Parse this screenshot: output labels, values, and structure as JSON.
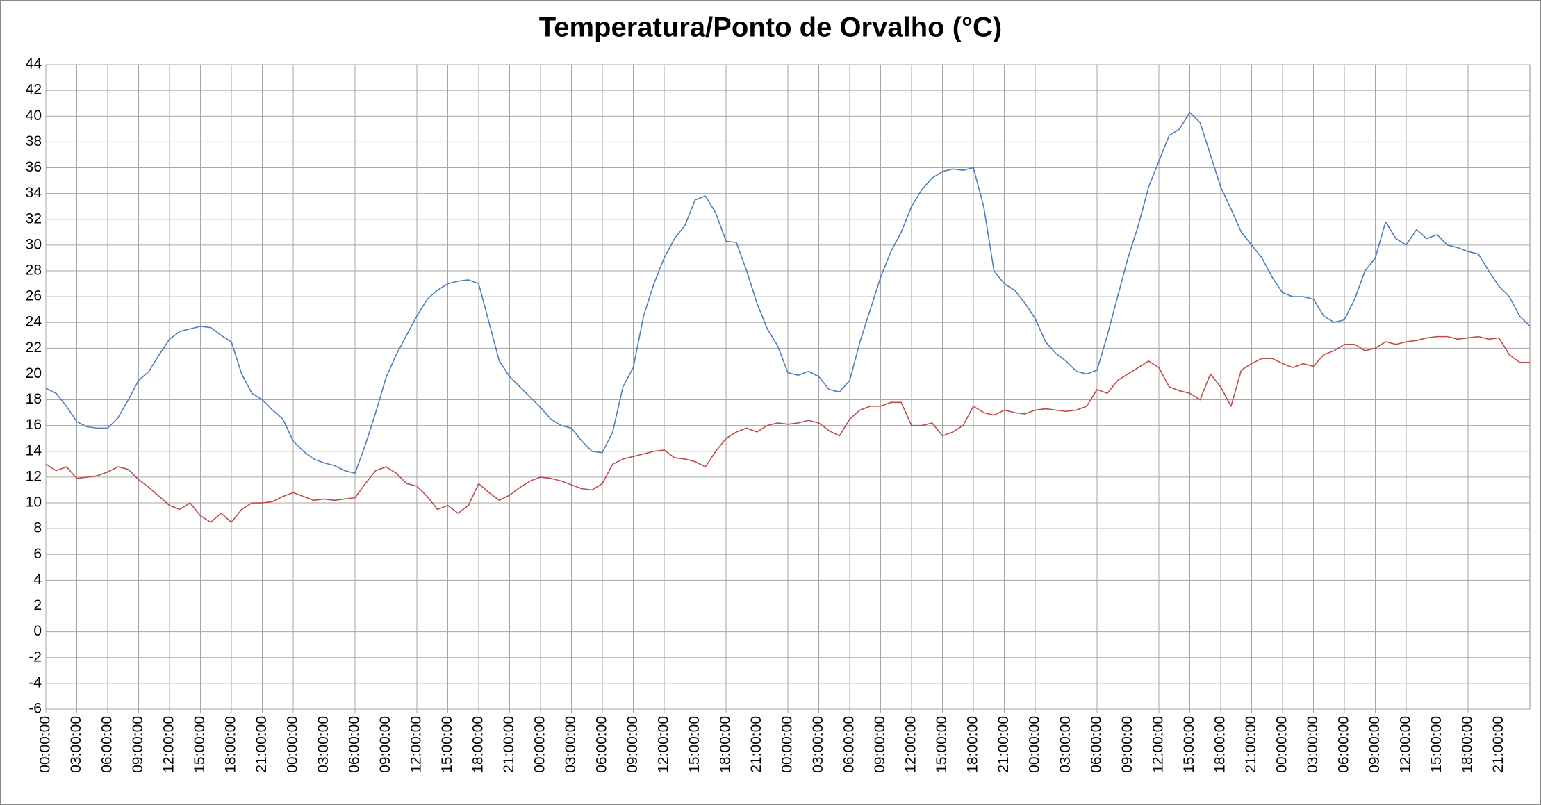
{
  "chart_data": {
    "type": "line",
    "title": "Temperatura/Ponto de Orvalho (°C)",
    "x": [
      0,
      1,
      2,
      3,
      4,
      5,
      6,
      7,
      8,
      9,
      10,
      11,
      12,
      13,
      14,
      15,
      16,
      17,
      18,
      19,
      20,
      21,
      22,
      23,
      24,
      25,
      26,
      27,
      28,
      29,
      30,
      31,
      32,
      33,
      34,
      35,
      36,
      37,
      38,
      39,
      40,
      41,
      42,
      43,
      44,
      45,
      46,
      47,
      48,
      49,
      50,
      51,
      52,
      53,
      54,
      55,
      56,
      57,
      58,
      59,
      60,
      61,
      62,
      63,
      64,
      65,
      66,
      67,
      68,
      69,
      70,
      71,
      72,
      73,
      74,
      75,
      76,
      77,
      78,
      79,
      80,
      81,
      82,
      83,
      84,
      85,
      86,
      87,
      88,
      89,
      90,
      91,
      92,
      93,
      94,
      95,
      96,
      97,
      98,
      99,
      100,
      101,
      102,
      103,
      104,
      105,
      106,
      107,
      108,
      109,
      110,
      111,
      112,
      113,
      114,
      115,
      116,
      117,
      118,
      119,
      120,
      121,
      122,
      123,
      124,
      125,
      126,
      127,
      128,
      129,
      130,
      131,
      132,
      133,
      134,
      135,
      136,
      137,
      138,
      139,
      140,
      141,
      142,
      143,
      144
    ],
    "series": [
      {
        "color": "#4a7ebb",
        "values": [
          18.9,
          18.5,
          17.5,
          16.3,
          15.9,
          15.8,
          15.8,
          16.6,
          18,
          19.5,
          20.2,
          21.5,
          22.7,
          23.3,
          23.5,
          23.7,
          23.6,
          23,
          22.5,
          20,
          18.5,
          18,
          17.2,
          16.5,
          14.8,
          14,
          13.4,
          13.1,
          12.9,
          12.5,
          12.3,
          14.5,
          17,
          19.7,
          21.5,
          23,
          24.5,
          25.8,
          26.5,
          27,
          27.2,
          27.3,
          27,
          24,
          21,
          19.8,
          19,
          18.2,
          17.4,
          16.5,
          16,
          15.8,
          14.8,
          14,
          13.9,
          15.5,
          19,
          20.5,
          24.5,
          27,
          29,
          30.5,
          31.5,
          33.5,
          33.8,
          32.5,
          30.3,
          30.2,
          28,
          25.5,
          23.5,
          22.2,
          20.1,
          19.9,
          20.2,
          19.8,
          18.8,
          18.6,
          19.5,
          22.5,
          25,
          27.5,
          29.5,
          31,
          33,
          34.3,
          35.2,
          35.7,
          35.9,
          35.8,
          36,
          33,
          28,
          27,
          26.5,
          25.5,
          24.3,
          22.5,
          21.6,
          21,
          20.2,
          20,
          20.3,
          23,
          26,
          29,
          31.5,
          34.5,
          36.5,
          38.5,
          39,
          40.3,
          39.5,
          37,
          34.5,
          32.8,
          31,
          30,
          29,
          27.5,
          26.3,
          26,
          26,
          25.8,
          24.5,
          24,
          24.2,
          25.8,
          28,
          29,
          31.8,
          30.5,
          30,
          31.2,
          30.5,
          30.8,
          30,
          29.8,
          29.5,
          29.3,
          28,
          26.8,
          26,
          24.5,
          23.7
        ]
      },
      {
        "color": "#be4b48",
        "values": [
          13,
          12.5,
          12.8,
          11.9,
          12,
          12.1,
          12.4,
          12.8,
          12.6,
          11.8,
          11.2,
          10.5,
          9.8,
          9.5,
          10,
          9,
          8.5,
          9.2,
          8.5,
          9.5,
          10,
          10,
          10.1,
          10.5,
          10.8,
          10.5,
          10.2,
          10.3,
          10.2,
          10.3,
          10.4,
          11.5,
          12.5,
          12.8,
          12.3,
          11.5,
          11.3,
          10.5,
          9.5,
          9.8,
          9.2,
          9.8,
          11.5,
          10.8,
          10.2,
          10.6,
          11.2,
          11.7,
          12,
          11.9,
          11.7,
          11.4,
          11.1,
          11,
          11.5,
          13,
          13.4,
          13.6,
          13.8,
          14,
          14.1,
          13.5,
          13.4,
          13.2,
          12.8,
          14,
          15,
          15.5,
          15.8,
          15.5,
          16,
          16.2,
          16.1,
          16.2,
          16.4,
          16.2,
          15.6,
          15.2,
          16.5,
          17.2,
          17.5,
          17.5,
          17.8,
          17.8,
          16,
          16,
          16.2,
          15.2,
          15.5,
          16,
          17.5,
          17,
          16.8,
          17.2,
          17,
          16.9,
          17.2,
          17.3,
          17.2,
          17.1,
          17.2,
          17.5,
          18.8,
          18.5,
          19.5,
          20,
          20.5,
          21,
          20.5,
          19,
          18.7,
          18.5,
          18,
          20,
          19,
          17.5,
          20.3,
          20.8,
          21.2,
          21.2,
          20.8,
          20.5,
          20.8,
          20.6,
          21.5,
          21.8,
          22.3,
          22.3,
          21.8,
          22,
          22.5,
          22.3,
          22.5,
          22.6,
          22.8,
          22.9,
          22.9,
          22.7,
          22.8,
          22.9,
          22.7,
          22.8,
          21.5,
          20.9,
          20.9
        ]
      }
    ],
    "xlim": [
      0,
      144
    ],
    "xticks": [
      {
        "value": 0,
        "label": "00:00:00"
      },
      {
        "value": 3,
        "label": "03:00:00"
      },
      {
        "value": 6,
        "label": "06:00:00"
      },
      {
        "value": 9,
        "label": "09:00:00"
      },
      {
        "value": 12,
        "label": "12:00:00"
      },
      {
        "value": 15,
        "label": "15:00:00"
      },
      {
        "value": 18,
        "label": "18:00:00"
      },
      {
        "value": 21,
        "label": "21:00:00"
      },
      {
        "value": 24,
        "label": "00:00:00"
      },
      {
        "value": 27,
        "label": "03:00:00"
      },
      {
        "value": 30,
        "label": "06:00:00"
      },
      {
        "value": 33,
        "label": "09:00:00"
      },
      {
        "value": 36,
        "label": "12:00:00"
      },
      {
        "value": 39,
        "label": "15:00:00"
      },
      {
        "value": 42,
        "label": "18:00:00"
      },
      {
        "value": 45,
        "label": "21:00:00"
      },
      {
        "value": 48,
        "label": "00:00:00"
      },
      {
        "value": 51,
        "label": "03:00:00"
      },
      {
        "value": 54,
        "label": "06:00:00"
      },
      {
        "value": 57,
        "label": "09:00:00"
      },
      {
        "value": 60,
        "label": "12:00:00"
      },
      {
        "value": 63,
        "label": "15:00:00"
      },
      {
        "value": 66,
        "label": "18:00:00"
      },
      {
        "value": 69,
        "label": "21:00:00"
      },
      {
        "value": 72,
        "label": "00:00:00"
      },
      {
        "value": 75,
        "label": "03:00:00"
      },
      {
        "value": 78,
        "label": "06:00:00"
      },
      {
        "value": 81,
        "label": "09:00:00"
      },
      {
        "value": 84,
        "label": "12:00:00"
      },
      {
        "value": 87,
        "label": "15:00:00"
      },
      {
        "value": 90,
        "label": "18:00:00"
      },
      {
        "value": 93,
        "label": "21:00:00"
      },
      {
        "value": 96,
        "label": "00:00:00"
      },
      {
        "value": 99,
        "label": "03:00:00"
      },
      {
        "value": 102,
        "label": "06:00:00"
      },
      {
        "value": 105,
        "label": "09:00:00"
      },
      {
        "value": 108,
        "label": "12:00:00"
      },
      {
        "value": 111,
        "label": "15:00:00"
      },
      {
        "value": 114,
        "label": "18:00:00"
      },
      {
        "value": 117,
        "label": "21:00:00"
      },
      {
        "value": 120,
        "label": "00:00:00"
      },
      {
        "value": 123,
        "label": "03:00:00"
      },
      {
        "value": 126,
        "label": "06:00:00"
      },
      {
        "value": 129,
        "label": "09:00:00"
      },
      {
        "value": 132,
        "label": "12:00:00"
      },
      {
        "value": 135,
        "label": "15:00:00"
      },
      {
        "value": 138,
        "label": "18:00:00"
      },
      {
        "value": 141,
        "label": "21:00:00"
      }
    ],
    "ylim": [
      -6,
      44
    ],
    "yticks": [
      -6,
      -4,
      -2,
      0,
      2,
      4,
      6,
      8,
      10,
      12,
      14,
      16,
      18,
      20,
      22,
      24,
      26,
      28,
      30,
      32,
      34,
      36,
      38,
      40,
      42,
      44
    ],
    "grid": true
  }
}
